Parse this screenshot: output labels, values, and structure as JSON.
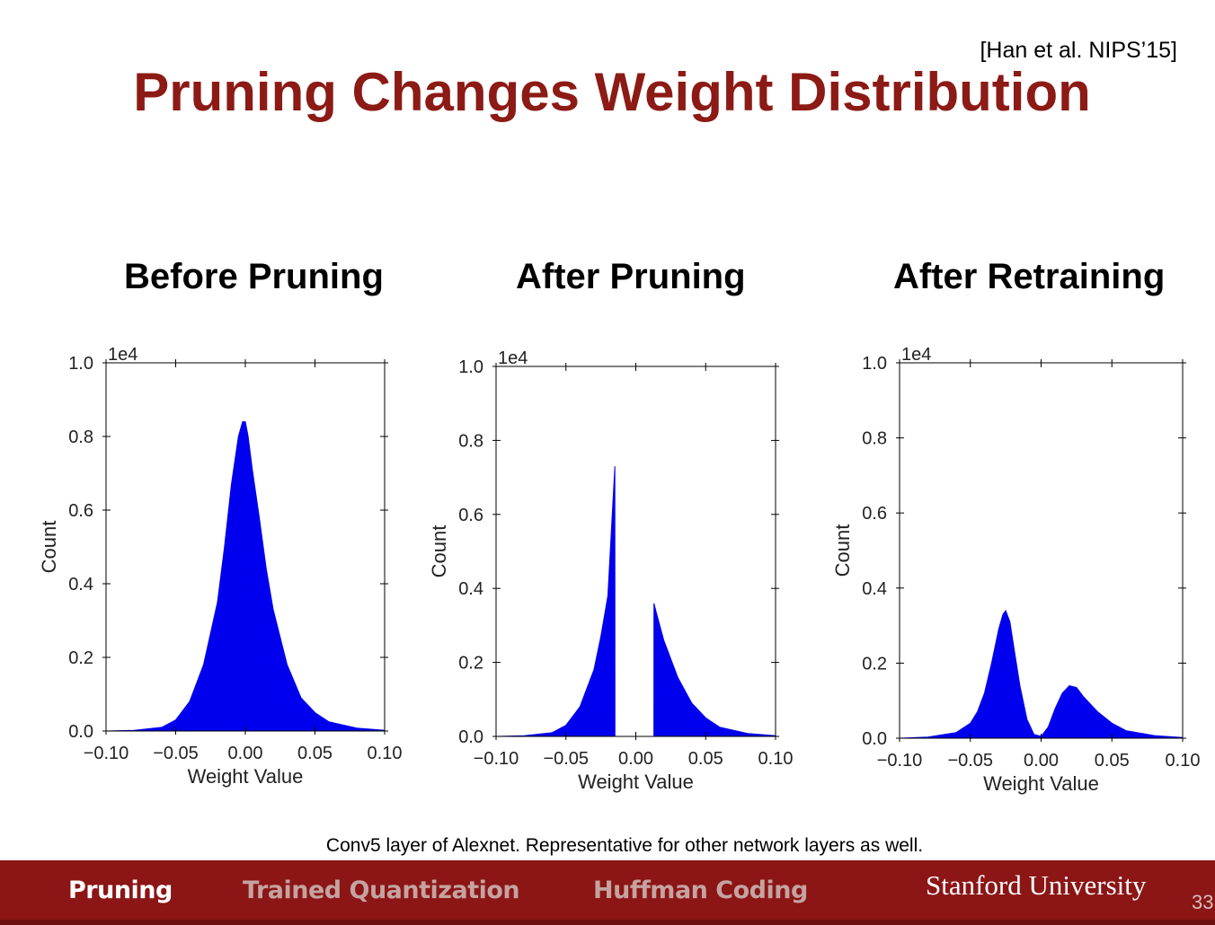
{
  "citation": "[Han et al. NIPS’15]",
  "title": "Pruning Changes Weight Distribution",
  "caption": "Conv5 layer of Alexnet. Representative for other network layers as well.",
  "footer": {
    "nav": [
      {
        "label": "Pruning",
        "active": true
      },
      {
        "label": "Trained Quantization",
        "active": false
      },
      {
        "label": "Huffman Coding",
        "active": false
      }
    ],
    "brand": "Stanford University",
    "page_number": "33"
  },
  "colors": {
    "accent": "#8c1a15",
    "bar": "#0000ee",
    "footer": "#8c1515"
  },
  "chart_data": [
    {
      "type": "bar",
      "title": "Before Pruning",
      "xlabel": "Weight Value",
      "ylabel": "Count",
      "scale_label": "1e4",
      "xlim": [
        -0.1,
        0.1
      ],
      "ylim": [
        0.0,
        1.0
      ],
      "xticks": [
        "−0.10",
        "−0.05",
        "0.00",
        "0.05",
        "0.10"
      ],
      "yticks": [
        "0.0",
        "0.2",
        "0.4",
        "0.6",
        "0.8",
        "1.0"
      ],
      "x": [
        -0.1,
        -0.08,
        -0.06,
        -0.05,
        -0.04,
        -0.03,
        -0.02,
        -0.015,
        -0.01,
        -0.005,
        -0.002,
        0.0,
        0.002,
        0.005,
        0.01,
        0.015,
        0.02,
        0.03,
        0.04,
        0.05,
        0.06,
        0.08,
        0.1
      ],
      "values": [
        0.0,
        0.002,
        0.01,
        0.03,
        0.08,
        0.18,
        0.35,
        0.5,
        0.67,
        0.8,
        0.84,
        0.84,
        0.8,
        0.71,
        0.58,
        0.44,
        0.33,
        0.18,
        0.09,
        0.05,
        0.025,
        0.008,
        0.002
      ]
    },
    {
      "type": "bar",
      "title": "After Pruning",
      "xlabel": "Weight Value",
      "ylabel": "Count",
      "scale_label": "1e4",
      "xlim": [
        -0.1,
        0.1
      ],
      "ylim": [
        0.0,
        1.0
      ],
      "xticks": [
        "−0.10",
        "−0.05",
        "0.00",
        "0.05",
        "0.10"
      ],
      "yticks": [
        "0.0",
        "0.2",
        "0.4",
        "0.6",
        "0.8",
        "1.0"
      ],
      "x": [
        -0.1,
        -0.08,
        -0.06,
        -0.05,
        -0.04,
        -0.03,
        -0.025,
        -0.02,
        -0.015,
        -0.0149,
        0.0129,
        0.013,
        0.015,
        0.02,
        0.03,
        0.04,
        0.05,
        0.06,
        0.08,
        0.1
      ],
      "values": [
        0.0,
        0.002,
        0.01,
        0.03,
        0.08,
        0.18,
        0.27,
        0.38,
        0.73,
        0.0,
        0.0,
        0.36,
        0.33,
        0.26,
        0.16,
        0.09,
        0.05,
        0.025,
        0.008,
        0.002
      ]
    },
    {
      "type": "bar",
      "title": "After Retraining",
      "xlabel": "Weight Value",
      "ylabel": "Count",
      "scale_label": "1e4",
      "xlim": [
        -0.1,
        0.1
      ],
      "ylim": [
        0.0,
        1.0
      ],
      "xticks": [
        "−0.10",
        "−0.05",
        "0.00",
        "0.05",
        "0.10"
      ],
      "yticks": [
        "0.0",
        "0.2",
        "0.4",
        "0.6",
        "0.8",
        "1.0"
      ],
      "x": [
        -0.1,
        -0.08,
        -0.06,
        -0.05,
        -0.045,
        -0.04,
        -0.035,
        -0.03,
        -0.027,
        -0.025,
        -0.022,
        -0.02,
        -0.015,
        -0.01,
        -0.005,
        0.0,
        0.005,
        0.01,
        0.015,
        0.02,
        0.025,
        0.03,
        0.04,
        0.05,
        0.06,
        0.08,
        0.1
      ],
      "values": [
        0.0,
        0.003,
        0.015,
        0.04,
        0.07,
        0.12,
        0.2,
        0.29,
        0.33,
        0.34,
        0.31,
        0.26,
        0.14,
        0.05,
        0.01,
        0.005,
        0.03,
        0.08,
        0.12,
        0.14,
        0.135,
        0.11,
        0.07,
        0.04,
        0.02,
        0.007,
        0.002
      ]
    }
  ]
}
